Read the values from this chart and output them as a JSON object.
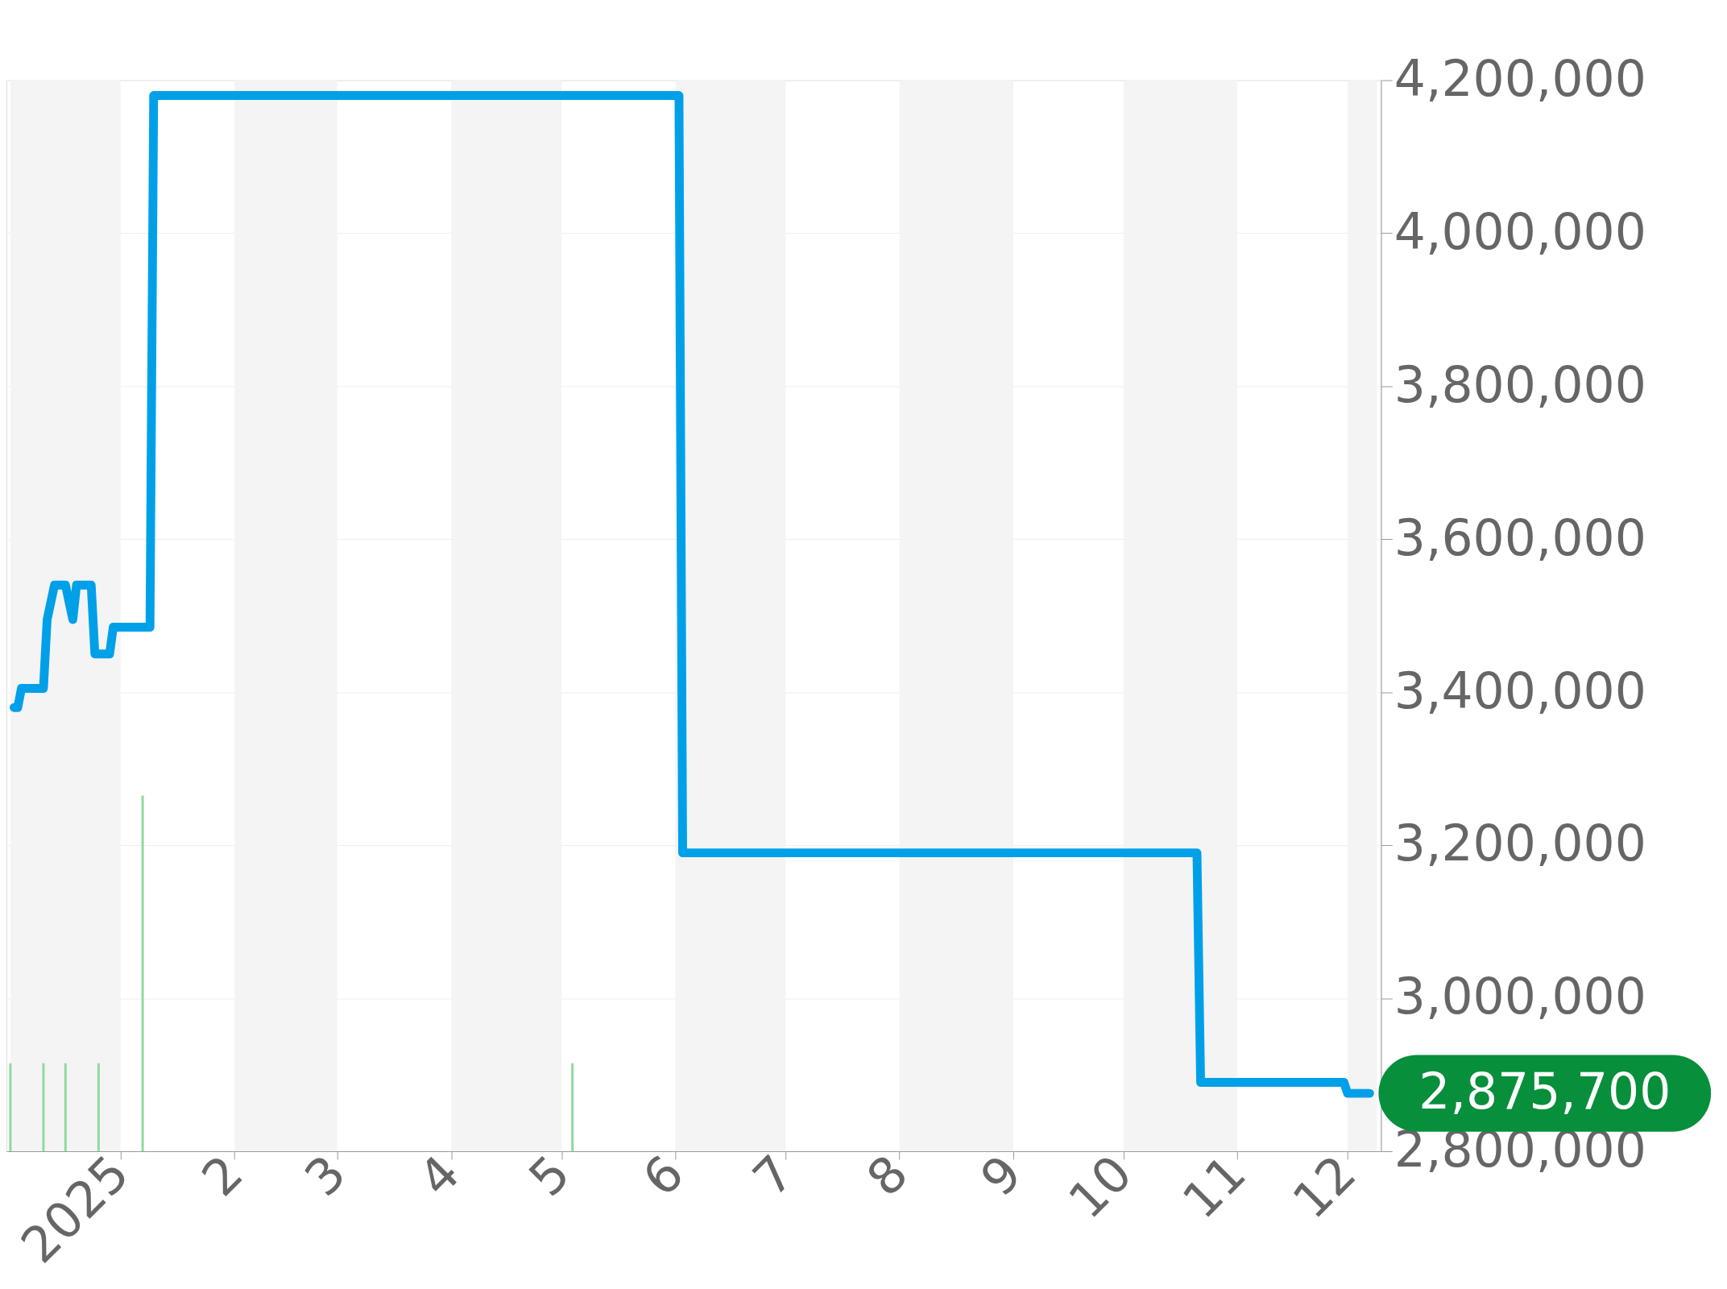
{
  "chart_data": {
    "type": "line",
    "xlim": [
      "2024-12-02",
      "2025-12-09"
    ],
    "xticks": [
      {
        "value": "2025-01-01",
        "label": "2025"
      },
      {
        "value": "2025-02-01",
        "label": "2"
      },
      {
        "value": "2025-03-01",
        "label": "3"
      },
      {
        "value": "2025-04-01",
        "label": "4"
      },
      {
        "value": "2025-05-01",
        "label": "5"
      },
      {
        "value": "2025-06-01",
        "label": "6"
      },
      {
        "value": "2025-07-01",
        "label": "7"
      },
      {
        "value": "2025-08-01",
        "label": "8"
      },
      {
        "value": "2025-09-01",
        "label": "9"
      },
      {
        "value": "2025-10-01",
        "label": "10"
      },
      {
        "value": "2025-11-01",
        "label": "11"
      },
      {
        "value": "2025-12-01",
        "label": "12"
      }
    ],
    "ylim": [
      2800000,
      4200000
    ],
    "yticks": [
      {
        "value": 2800000,
        "label": "2,800,000"
      },
      {
        "value": 3000000,
        "label": "3,000,000"
      },
      {
        "value": 3200000,
        "label": "3,200,000"
      },
      {
        "value": 3400000,
        "label": "3,400,000"
      },
      {
        "value": 3600000,
        "label": "3,600,000"
      },
      {
        "value": 3800000,
        "label": "3,800,000"
      },
      {
        "value": 4000000,
        "label": "4,000,000"
      },
      {
        "value": 4200000,
        "label": "4,200,000"
      }
    ],
    "grid": "y",
    "series": [
      {
        "color": "#00a0e9",
        "x": [
          "2024-12-03",
          "2024-12-04",
          "2024-12-05",
          "2024-12-11",
          "2024-12-12",
          "2024-12-14",
          "2024-12-17",
          "2024-12-19",
          "2024-12-20",
          "2024-12-24",
          "2024-12-25",
          "2024-12-29",
          "2024-12-30",
          "2025-01-09",
          "2025-01-10",
          "2025-06-02",
          "2025-06-03",
          "2025-10-21",
          "2025-10-22",
          "2025-11-30",
          "2025-12-01",
          "2025-12-07"
        ],
        "values": [
          3380000,
          3380000,
          3405000,
          3405000,
          3495000,
          3540000,
          3540000,
          3495000,
          3540000,
          3540000,
          3450000,
          3450000,
          3485000,
          3485000,
          4180000,
          4180000,
          3190000,
          3190000,
          2890000,
          2890000,
          2875700,
          2875700
        ]
      },
      {
        "type": "bar",
        "color": "#8fd99f",
        "x": [
          "2024-12-02",
          "2024-12-11",
          "2024-12-17",
          "2024-12-26",
          "2025-01-07",
          "2025-05-04"
        ],
        "values": [
          2915000,
          2915000,
          2915000,
          2915000,
          3265000,
          2915000
        ]
      }
    ],
    "bands": [
      {
        "axis": "x",
        "from": "2024-12-02",
        "to": "2025-01-01",
        "color": "#f4f4f4"
      },
      {
        "axis": "x",
        "from": "2025-02-01",
        "to": "2025-03-01",
        "color": "#f4f4f4"
      },
      {
        "axis": "x",
        "from": "2025-04-01",
        "to": "2025-05-01",
        "color": "#f4f4f4"
      },
      {
        "axis": "x",
        "from": "2025-06-01",
        "to": "2025-07-01",
        "color": "#f4f4f4"
      },
      {
        "axis": "x",
        "from": "2025-08-01",
        "to": "2025-09-01",
        "color": "#f4f4f4"
      },
      {
        "axis": "x",
        "from": "2025-10-01",
        "to": "2025-11-01",
        "color": "#f4f4f4"
      },
      {
        "axis": "x",
        "from": "2025-12-01",
        "to": "2025-12-09",
        "color": "#f4f4f4"
      }
    ],
    "annotations": [
      {
        "text": "2,875,700",
        "x": "2025-12-07",
        "y": 2875700
      }
    ]
  }
}
